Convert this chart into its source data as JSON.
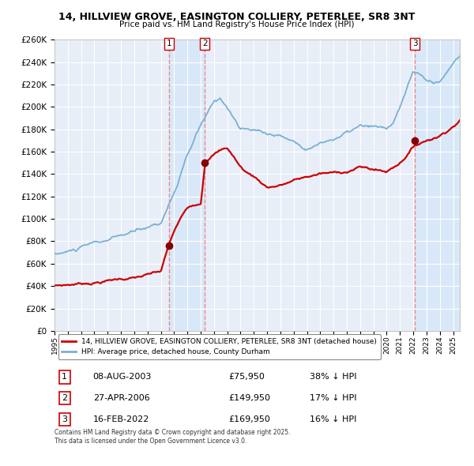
{
  "title": "14, HILLVIEW GROVE, EASINGTON COLLIERY, PETERLEE, SR8 3NT",
  "subtitle": "Price paid vs. HM Land Registry's House Price Index (HPI)",
  "footer": "Contains HM Land Registry data © Crown copyright and database right 2025.\nThis data is licensed under the Open Government Licence v3.0.",
  "legend_house": "14, HILLVIEW GROVE, EASINGTON COLLIERY, PETERLEE, SR8 3NT (detached house)",
  "legend_hpi": "HPI: Average price, detached house, County Durham",
  "sales": [
    {
      "num": 1,
      "date_str": "08-AUG-2003",
      "year": 2003.6,
      "price": 75950,
      "hpi_note": "38% ↓ HPI"
    },
    {
      "num": 2,
      "date_str": "27-APR-2006",
      "year": 2006.32,
      "price": 149950,
      "hpi_note": "17% ↓ HPI"
    },
    {
      "num": 3,
      "date_str": "16-FEB-2022",
      "year": 2022.12,
      "price": 169950,
      "hpi_note": "16% ↓ HPI"
    }
  ],
  "ylim": [
    0,
    260000
  ],
  "ytick_step": 20000,
  "xmin": 1995,
  "xmax": 2025.5,
  "bg_color": "#ffffff",
  "plot_bg_color": "#e8eef8",
  "grid_color": "#ffffff",
  "house_color": "#cc0000",
  "hpi_color": "#7ab0d4",
  "vline_color": "#ee8888",
  "sale_fill_color": "#d8e8f8",
  "marker_color": "#880000",
  "label_box_color": "#cc0000"
}
